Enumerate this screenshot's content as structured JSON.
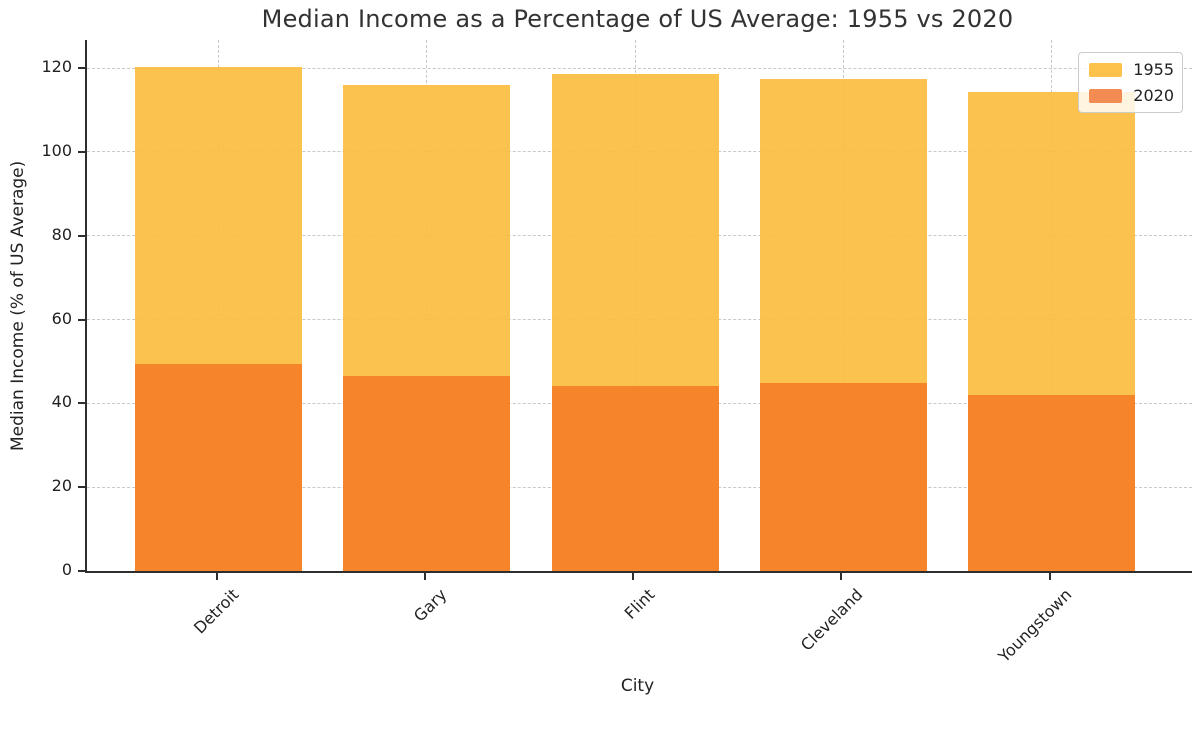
{
  "figure": {
    "title": "Median Income as a Percentage of US Average: 1955 vs 2020",
    "xlabel": "City",
    "ylabel": "Median Income (% of US Average)"
  },
  "legend": {
    "position": "upper right",
    "entries": [
      {
        "label": "1955",
        "swatch_color": "#FCC24C"
      },
      {
        "label": "2020",
        "swatch_color": "#F28C52"
      }
    ]
  },
  "chart_data": {
    "type": "bar",
    "mode": "overlaid",
    "title": "Median Income as a Percentage of US Average: 1955 vs 2020",
    "xlabel": "City",
    "ylabel": "Median Income (% of US Average)",
    "categories": [
      "Detroit",
      "Gary",
      "Flint",
      "Cleveland",
      "Youngstown"
    ],
    "series": [
      {
        "name": "1955",
        "color": "#FBBE3F",
        "values": [
          120.2,
          115.9,
          118.7,
          117.3,
          114.4
        ]
      },
      {
        "name": "2020",
        "color": "#F57F28",
        "values": [
          49.5,
          46.5,
          44.2,
          44.9,
          41.9
        ]
      }
    ],
    "yticks": [
      0,
      20,
      40,
      60,
      80,
      100,
      120
    ],
    "ylim": [
      0,
      126.7
    ],
    "grid": true,
    "grid_style": "dashed",
    "x_tick_rotation_deg": 45,
    "legend_position": "upper right"
  }
}
